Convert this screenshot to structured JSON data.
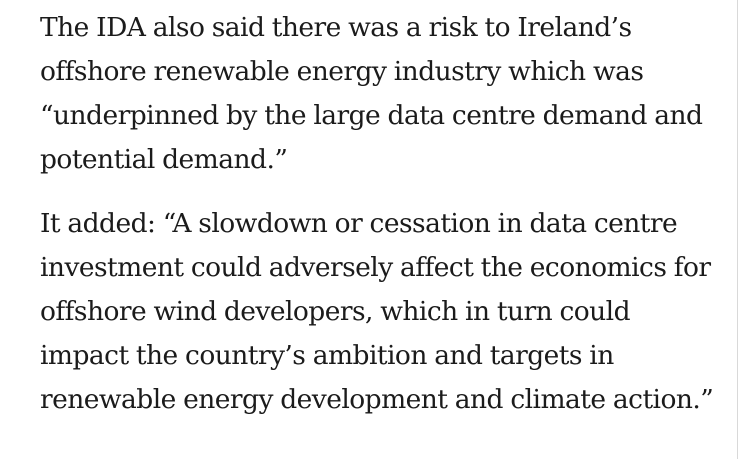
{
  "article": {
    "paragraphs": [
      {
        "lines": [
          "The IDA also said there was a risk to Ireland’s",
          "offshore renewable energy industry which was",
          "“underpinned by the large data centre demand and",
          "potential demand.”"
        ]
      },
      {
        "lines": [
          "It added: “A slowdown or cessation in data centre",
          "investment could adversely affect the economics for",
          "offshore wind developers, which in turn could",
          "impact the country’s ambition and targets in",
          "renewable energy development and climate action.”"
        ]
      }
    ]
  }
}
